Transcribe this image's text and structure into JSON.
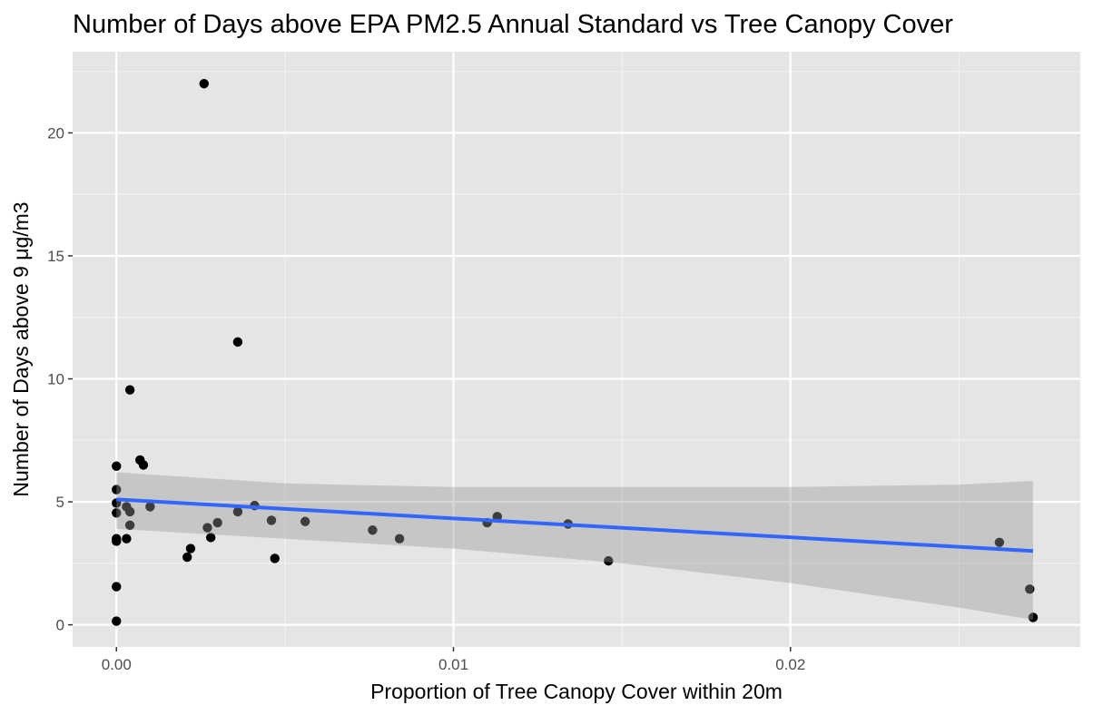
{
  "chart_data": {
    "type": "scatter",
    "title": "Number of Days above EPA PM2.5 Annual Standard vs Tree Canopy Cover",
    "xlabel": "Proportion of Tree Canopy Cover within 20m",
    "ylabel": "Number of Days above 9 μg/m3",
    "xlim": [
      -0.0013,
      0.0286
    ],
    "ylim": [
      -0.9,
      23.3
    ],
    "x_ticks": [
      {
        "value": 0.0,
        "label": "0.00"
      },
      {
        "value": 0.01,
        "label": "0.01"
      },
      {
        "value": 0.02,
        "label": "0.02"
      }
    ],
    "y_ticks": [
      {
        "value": 0,
        "label": "0"
      },
      {
        "value": 5,
        "label": "5"
      },
      {
        "value": 10,
        "label": "10"
      },
      {
        "value": 15,
        "label": "15"
      },
      {
        "value": 20,
        "label": "20"
      }
    ],
    "grid": true,
    "background": "#e5e5e5",
    "point_color": "#000000",
    "points": [
      {
        "x": 0.0026,
        "y": 22.0
      },
      {
        "x": 0.0036,
        "y": 11.5
      },
      {
        "x": 0.0004,
        "y": 9.55
      },
      {
        "x": 0.0007,
        "y": 6.7
      },
      {
        "x": 0.0008,
        "y": 6.5
      },
      {
        "x": 0.0,
        "y": 6.45
      },
      {
        "x": 0.0,
        "y": 5.5
      },
      {
        "x": 0.0,
        "y": 4.95
      },
      {
        "x": 0.0003,
        "y": 4.8
      },
      {
        "x": 0.001,
        "y": 4.8
      },
      {
        "x": 0.0004,
        "y": 4.6
      },
      {
        "x": 0.0,
        "y": 4.55
      },
      {
        "x": 0.0041,
        "y": 4.85
      },
      {
        "x": 0.0036,
        "y": 4.6
      },
      {
        "x": 0.0046,
        "y": 4.25
      },
      {
        "x": 0.0056,
        "y": 4.2
      },
      {
        "x": 0.003,
        "y": 4.15
      },
      {
        "x": 0.0004,
        "y": 4.05
      },
      {
        "x": 0.0027,
        "y": 3.95
      },
      {
        "x": 0.0076,
        "y": 3.85
      },
      {
        "x": 0.0084,
        "y": 3.5
      },
      {
        "x": 0.0003,
        "y": 3.5
      },
      {
        "x": 0.0,
        "y": 3.5
      },
      {
        "x": 0.0,
        "y": 3.4
      },
      {
        "x": 0.0028,
        "y": 3.55
      },
      {
        "x": 0.0022,
        "y": 3.1
      },
      {
        "x": 0.0021,
        "y": 2.75
      },
      {
        "x": 0.0047,
        "y": 2.7
      },
      {
        "x": 0.011,
        "y": 4.15
      },
      {
        "x": 0.0113,
        "y": 4.4
      },
      {
        "x": 0.0134,
        "y": 4.1
      },
      {
        "x": 0.0146,
        "y": 2.6
      },
      {
        "x": 0.0,
        "y": 1.55
      },
      {
        "x": 0.0,
        "y": 0.15
      },
      {
        "x": 0.0262,
        "y": 3.35
      },
      {
        "x": 0.0271,
        "y": 1.45
      },
      {
        "x": 0.0272,
        "y": 0.3
      }
    ],
    "trend_line": {
      "color": "#3366ff",
      "x": [
        0.0,
        0.0272
      ],
      "y": [
        5.1,
        3.0
      ]
    },
    "confidence_band": {
      "color": "#bebebe",
      "x": [
        0.0,
        0.005,
        0.01,
        0.015,
        0.02,
        0.025,
        0.0272
      ],
      "lower": [
        3.9,
        3.5,
        3.1,
        2.5,
        1.7,
        0.7,
        0.2
      ],
      "upper": [
        6.2,
        5.75,
        5.6,
        5.6,
        5.6,
        5.7,
        5.85
      ]
    }
  }
}
